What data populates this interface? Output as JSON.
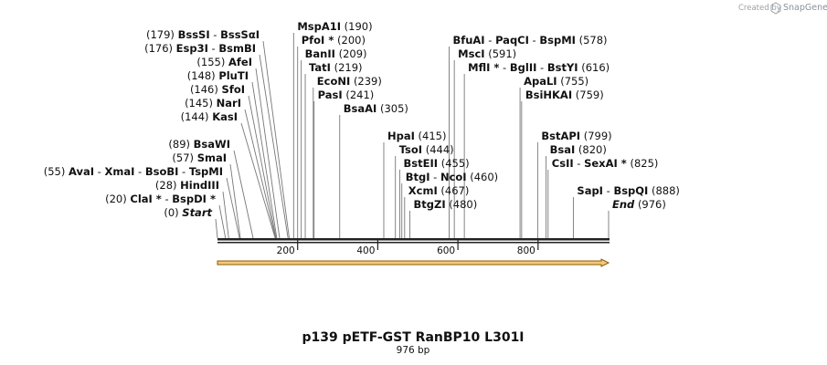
{
  "brand": {
    "created_by": "Created by",
    "name": "SnapGene"
  },
  "title": "p139 pETF-GST RanBP10 L301I",
  "length_label": "976 bp",
  "sequence_length": 976,
  "axis_ticks": [
    200,
    400,
    600,
    800
  ],
  "colors": {
    "backbone": "#222222",
    "feature_fill": "#f6c97a",
    "feature_stroke": "#8a5a00",
    "leader": "#666666"
  },
  "feature": {
    "name": "orange-feature-arrow",
    "start": 0,
    "end": 976
  },
  "sites": [
    {
      "row": 0,
      "side": "left",
      "pos": 0,
      "pos_label": "(0)",
      "items": [
        {
          "name": "Start",
          "italic": true
        }
      ]
    },
    {
      "row": 1,
      "side": "left",
      "pos": 20,
      "pos_label": "(20)",
      "items": [
        {
          "name": "ClaI",
          "star": true
        },
        {
          "name": "BspDI",
          "star": true
        }
      ]
    },
    {
      "row": 2,
      "side": "left",
      "pos": 28,
      "pos_label": "(28)",
      "items": [
        {
          "name": "HindIII"
        }
      ]
    },
    {
      "row": 3,
      "side": "left",
      "pos": 55,
      "pos_label": "(55)",
      "items": [
        {
          "name": "AvaI"
        },
        {
          "name": "XmaI"
        },
        {
          "name": "BsoBI"
        },
        {
          "name": "TspMI"
        }
      ]
    },
    {
      "row": 4,
      "side": "left",
      "pos": 57,
      "pos_label": "(57)",
      "items": [
        {
          "name": "SmaI"
        }
      ]
    },
    {
      "row": 5,
      "side": "left",
      "pos": 89,
      "pos_label": "(89)",
      "items": [
        {
          "name": "BsaWI"
        }
      ]
    },
    {
      "row": 7,
      "side": "left",
      "pos": 144,
      "pos_label": "(144)",
      "items": [
        {
          "name": "KasI"
        }
      ]
    },
    {
      "row": 8,
      "side": "left",
      "pos": 145,
      "pos_label": "(145)",
      "items": [
        {
          "name": "NarI"
        }
      ]
    },
    {
      "row": 9,
      "side": "left",
      "pos": 146,
      "pos_label": "(146)",
      "items": [
        {
          "name": "SfoI"
        }
      ]
    },
    {
      "row": 10,
      "side": "left",
      "pos": 148,
      "pos_label": "(148)",
      "items": [
        {
          "name": "PluTI"
        }
      ]
    },
    {
      "row": 11,
      "side": "left",
      "pos": 155,
      "pos_label": "(155)",
      "items": [
        {
          "name": "AfeI"
        }
      ]
    },
    {
      "row": 12,
      "side": "left",
      "pos": 176,
      "pos_label": "(176)",
      "items": [
        {
          "name": "Esp3I"
        },
        {
          "name": "BsmBI"
        }
      ]
    },
    {
      "row": 13,
      "side": "left",
      "pos": 179,
      "pos_label": "(179)",
      "items": [
        {
          "name": "BssSI"
        },
        {
          "name": "BssSαI"
        }
      ]
    },
    {
      "row": 13.6,
      "side": "right",
      "pos": 190,
      "pos_label": "(190)",
      "items": [
        {
          "name": "MspA1I"
        }
      ]
    },
    {
      "row": 12.6,
      "side": "right",
      "pos": 200,
      "pos_label": "(200)",
      "items": [
        {
          "name": "PfoI",
          "star": true
        }
      ]
    },
    {
      "row": 11.6,
      "side": "right",
      "pos": 209,
      "pos_label": "(209)",
      "items": [
        {
          "name": "BanII"
        }
      ]
    },
    {
      "row": 10.6,
      "side": "right",
      "pos": 219,
      "pos_label": "(219)",
      "items": [
        {
          "name": "TatI"
        }
      ]
    },
    {
      "row": 9.6,
      "side": "right",
      "pos": 239,
      "pos_label": "(239)",
      "items": [
        {
          "name": "EcoNI"
        }
      ]
    },
    {
      "row": 8.6,
      "side": "right",
      "pos": 241,
      "pos_label": "(241)",
      "items": [
        {
          "name": "PasI"
        }
      ]
    },
    {
      "row": 7.6,
      "side": "right",
      "pos": 305,
      "pos_label": "(305)",
      "items": [
        {
          "name": "BsaAI"
        }
      ]
    },
    {
      "row": 5.6,
      "side": "right",
      "pos": 415,
      "pos_label": "(415)",
      "items": [
        {
          "name": "HpaI"
        }
      ]
    },
    {
      "row": 4.6,
      "side": "right",
      "pos": 444,
      "pos_label": "(444)",
      "items": [
        {
          "name": "TsoI"
        }
      ]
    },
    {
      "row": 3.6,
      "side": "right",
      "pos": 455,
      "pos_label": "(455)",
      "items": [
        {
          "name": "BstEII"
        }
      ]
    },
    {
      "row": 2.6,
      "side": "right",
      "pos": 460,
      "pos_label": "(460)",
      "items": [
        {
          "name": "BtgI"
        },
        {
          "name": "NcoI"
        }
      ]
    },
    {
      "row": 1.6,
      "side": "right",
      "pos": 467,
      "pos_label": "(467)",
      "items": [
        {
          "name": "XcmI"
        }
      ]
    },
    {
      "row": 0.6,
      "side": "right",
      "pos": 480,
      "pos_label": "(480)",
      "items": [
        {
          "name": "BtgZI"
        }
      ]
    },
    {
      "row": 12.6,
      "side": "right",
      "pos": 578,
      "pos_label": "(578)",
      "items": [
        {
          "name": "BfuAI"
        },
        {
          "name": "PaqCI"
        },
        {
          "name": "BspMI"
        }
      ]
    },
    {
      "row": 11.6,
      "side": "right",
      "pos": 591,
      "pos_label": "(591)",
      "items": [
        {
          "name": "MscI"
        }
      ]
    },
    {
      "row": 10.6,
      "side": "right",
      "pos": 616,
      "pos_label": "(616)",
      "items": [
        {
          "name": "MflI",
          "star": true
        },
        {
          "name": "BglII"
        },
        {
          "name": "BstYI"
        }
      ]
    },
    {
      "row": 9.6,
      "side": "right",
      "pos": 755,
      "pos_label": "(755)",
      "items": [
        {
          "name": "ApaLI"
        }
      ]
    },
    {
      "row": 8.6,
      "side": "right",
      "pos": 759,
      "pos_label": "(759)",
      "items": [
        {
          "name": "BsiHKAI"
        }
      ]
    },
    {
      "row": 5.6,
      "side": "right",
      "pos": 799,
      "pos_label": "(799)",
      "items": [
        {
          "name": "BstAPI"
        }
      ]
    },
    {
      "row": 4.6,
      "side": "right",
      "pos": 820,
      "pos_label": "(820)",
      "items": [
        {
          "name": "BsaI"
        }
      ]
    },
    {
      "row": 3.6,
      "side": "right",
      "pos": 825,
      "pos_label": "(825)",
      "items": [
        {
          "name": "CsII"
        },
        {
          "name": "SexAI",
          "star": true
        }
      ]
    },
    {
      "row": 1.6,
      "side": "right",
      "pos": 888,
      "pos_label": "(888)",
      "items": [
        {
          "name": "SapI"
        },
        {
          "name": "BspQI"
        }
      ]
    },
    {
      "row": 0.6,
      "side": "right",
      "pos": 976,
      "pos_label": "(976)",
      "items": [
        {
          "name": "End",
          "italic": true
        }
      ]
    }
  ]
}
